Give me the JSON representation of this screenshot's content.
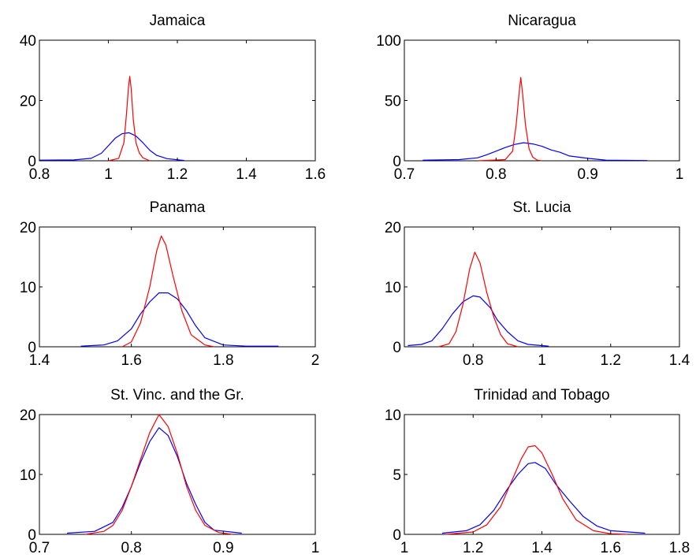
{
  "chart_data": [
    {
      "type": "line",
      "title": "Jamaica",
      "xlim": [
        0.8,
        1.6
      ],
      "ylim": [
        0,
        40
      ],
      "xticks": [
        0.8,
        1,
        1.2,
        1.4,
        1.6
      ],
      "yticks": [
        0,
        20,
        40
      ],
      "xticklabels": [
        "0.8",
        "1",
        "1.2",
        "1.4",
        "1.6"
      ],
      "yticklabels": [
        "0",
        "20",
        "40"
      ],
      "series": [
        {
          "color": "#0000ff",
          "points": [
            [
              0.8,
              0.2
            ],
            [
              0.9,
              0.3
            ],
            [
              0.95,
              0.8
            ],
            [
              0.98,
              2.5
            ],
            [
              1.0,
              5
            ],
            [
              1.02,
              7.5
            ],
            [
              1.04,
              9
            ],
            [
              1.06,
              9.3
            ],
            [
              1.08,
              8.2
            ],
            [
              1.1,
              6
            ],
            [
              1.12,
              3.5
            ],
            [
              1.14,
              1.8
            ],
            [
              1.17,
              0.7
            ],
            [
              1.22,
              0.1
            ]
          ]
        },
        {
          "color": "#ff0000",
          "points": [
            [
              1.0,
              0
            ],
            [
              1.03,
              0.8
            ],
            [
              1.045,
              6
            ],
            [
              1.052,
              15
            ],
            [
              1.058,
              24
            ],
            [
              1.062,
              28
            ],
            [
              1.066,
              24
            ],
            [
              1.072,
              14
            ],
            [
              1.08,
              6
            ],
            [
              1.09,
              2.5
            ],
            [
              1.1,
              1
            ],
            [
              1.12,
              0
            ]
          ]
        }
      ]
    },
    {
      "type": "line",
      "title": "Nicaragua",
      "xlim": [
        0.7,
        1
      ],
      "ylim": [
        0,
        100
      ],
      "xticks": [
        0.7,
        0.8,
        0.9,
        1
      ],
      "yticks": [
        0,
        50,
        100
      ],
      "xticklabels": [
        "0.7",
        "0.8",
        "0.9",
        "1"
      ],
      "yticklabels": [
        "0",
        "50",
        "100"
      ],
      "series": [
        {
          "color": "#0000ff",
          "points": [
            [
              0.72,
              0.5
            ],
            [
              0.76,
              1
            ],
            [
              0.78,
              2.5
            ],
            [
              0.79,
              5
            ],
            [
              0.8,
              8
            ],
            [
              0.81,
              11
            ],
            [
              0.82,
              13.5
            ],
            [
              0.83,
              15
            ],
            [
              0.84,
              14
            ],
            [
              0.85,
              12
            ],
            [
              0.86,
              9
            ],
            [
              0.87,
              7
            ],
            [
              0.88,
              4
            ],
            [
              0.9,
              2
            ],
            [
              0.92,
              0.5
            ],
            [
              0.965,
              0.2
            ]
          ]
        },
        {
          "color": "#ff0000",
          "points": [
            [
              0.78,
              0
            ],
            [
              0.81,
              1
            ],
            [
              0.818,
              8
            ],
            [
              0.822,
              30
            ],
            [
              0.825,
              55
            ],
            [
              0.827,
              69
            ],
            [
              0.829,
              55
            ],
            [
              0.832,
              30
            ],
            [
              0.836,
              10
            ],
            [
              0.84,
              3
            ],
            [
              0.845,
              0.5
            ],
            [
              0.85,
              0
            ]
          ]
        }
      ]
    },
    {
      "type": "line",
      "title": "Panama",
      "xlim": [
        1.4,
        2
      ],
      "ylim": [
        0,
        20
      ],
      "xticks": [
        1.4,
        1.6,
        1.8,
        2
      ],
      "yticks": [
        0,
        10,
        20
      ],
      "xticklabels": [
        "1.4",
        "1.6",
        "1.8",
        "2"
      ],
      "yticklabels": [
        "0",
        "10",
        "20"
      ],
      "series": [
        {
          "color": "#0000ff",
          "points": [
            [
              1.49,
              0.1
            ],
            [
              1.54,
              0.3
            ],
            [
              1.57,
              1
            ],
            [
              1.6,
              3
            ],
            [
              1.62,
              5.5
            ],
            [
              1.64,
              7.5
            ],
            [
              1.66,
              9
            ],
            [
              1.68,
              9
            ],
            [
              1.7,
              8
            ],
            [
              1.72,
              6
            ],
            [
              1.74,
              3.5
            ],
            [
              1.76,
              1.5
            ],
            [
              1.8,
              0.3
            ],
            [
              1.85,
              0.1
            ],
            [
              1.92,
              0.1
            ]
          ]
        },
        {
          "color": "#ff0000",
          "points": [
            [
              1.58,
              0
            ],
            [
              1.6,
              0.8
            ],
            [
              1.62,
              4
            ],
            [
              1.64,
              10
            ],
            [
              1.655,
              16
            ],
            [
              1.665,
              18.5
            ],
            [
              1.675,
              17
            ],
            [
              1.69,
              12
            ],
            [
              1.71,
              6
            ],
            [
              1.73,
              2
            ],
            [
              1.76,
              0.3
            ],
            [
              1.78,
              0
            ]
          ]
        }
      ]
    },
    {
      "type": "line",
      "title": "St. Lucia",
      "xlim": [
        0.6,
        1.4
      ],
      "ylim": [
        0,
        20
      ],
      "xticks": [
        0.8,
        1,
        1.2,
        1.4
      ],
      "yticks": [
        0,
        10,
        20
      ],
      "xticklabels": [
        "0.8",
        "1",
        "1.2",
        "1.4"
      ],
      "yticklabels": [
        "0",
        "10",
        "20"
      ],
      "series": [
        {
          "color": "#0000ff",
          "points": [
            [
              0.61,
              0.2
            ],
            [
              0.65,
              0.4
            ],
            [
              0.68,
              1
            ],
            [
              0.71,
              3
            ],
            [
              0.74,
              5.5
            ],
            [
              0.77,
              7.5
            ],
            [
              0.8,
              8.5
            ],
            [
              0.82,
              8.3
            ],
            [
              0.85,
              6.5
            ],
            [
              0.87,
              4.5
            ],
            [
              0.9,
              2.5
            ],
            [
              0.93,
              1
            ],
            [
              0.96,
              0.4
            ],
            [
              1.0,
              0.2
            ],
            [
              1.02,
              0.1
            ]
          ]
        },
        {
          "color": "#ff0000",
          "points": [
            [
              0.7,
              0
            ],
            [
              0.73,
              0.5
            ],
            [
              0.75,
              2.5
            ],
            [
              0.77,
              7
            ],
            [
              0.79,
              13
            ],
            [
              0.805,
              15.8
            ],
            [
              0.82,
              14
            ],
            [
              0.84,
              9
            ],
            [
              0.86,
              5
            ],
            [
              0.88,
              2
            ],
            [
              0.9,
              0.5
            ],
            [
              0.93,
              0
            ]
          ]
        }
      ]
    },
    {
      "type": "line",
      "title": "St. Vinc. and the Gr.",
      "xlim": [
        0.7,
        1
      ],
      "ylim": [
        0,
        20
      ],
      "xticks": [
        0.7,
        0.8,
        0.9,
        1
      ],
      "yticks": [
        0,
        10,
        20
      ],
      "xticklabels": [
        "0.7",
        "0.8",
        "0.9",
        "1"
      ],
      "yticklabels": [
        "0",
        "10",
        "20"
      ],
      "series": [
        {
          "color": "#0000ff",
          "points": [
            [
              0.73,
              0.2
            ],
            [
              0.76,
              0.5
            ],
            [
              0.78,
              2
            ],
            [
              0.79,
              4.5
            ],
            [
              0.8,
              8
            ],
            [
              0.81,
              12
            ],
            [
              0.82,
              15.5
            ],
            [
              0.83,
              17.8
            ],
            [
              0.84,
              16.5
            ],
            [
              0.85,
              13
            ],
            [
              0.86,
              8.5
            ],
            [
              0.87,
              5
            ],
            [
              0.88,
              2
            ],
            [
              0.89,
              0.7
            ],
            [
              0.92,
              0.2
            ]
          ]
        },
        {
          "color": "#ff0000",
          "points": [
            [
              0.75,
              0
            ],
            [
              0.77,
              0.5
            ],
            [
              0.78,
              1.5
            ],
            [
              0.79,
              4
            ],
            [
              0.8,
              8
            ],
            [
              0.81,
              12.5
            ],
            [
              0.82,
              17
            ],
            [
              0.83,
              20
            ],
            [
              0.84,
              18
            ],
            [
              0.85,
              13.5
            ],
            [
              0.86,
              8
            ],
            [
              0.87,
              4
            ],
            [
              0.88,
              1.5
            ],
            [
              0.895,
              0.3
            ],
            [
              0.91,
              0
            ]
          ]
        }
      ]
    },
    {
      "type": "line",
      "title": "Trinidad and Tobago",
      "xlim": [
        1,
        1.8
      ],
      "ylim": [
        0,
        10
      ],
      "xticks": [
        1,
        1.2,
        1.4,
        1.6,
        1.8
      ],
      "yticks": [
        0,
        5,
        10
      ],
      "xticklabels": [
        "1",
        "1.2",
        "1.4",
        "1.6",
        "1.8"
      ],
      "yticklabels": [
        "0",
        "5",
        "10"
      ],
      "series": [
        {
          "color": "#0000ff",
          "points": [
            [
              1.11,
              0.1
            ],
            [
              1.18,
              0.3
            ],
            [
              1.22,
              0.8
            ],
            [
              1.26,
              2
            ],
            [
              1.3,
              3.8
            ],
            [
              1.33,
              5
            ],
            [
              1.36,
              5.9
            ],
            [
              1.38,
              6
            ],
            [
              1.41,
              5.5
            ],
            [
              1.44,
              4.2
            ],
            [
              1.48,
              2.8
            ],
            [
              1.52,
              1.5
            ],
            [
              1.56,
              0.7
            ],
            [
              1.6,
              0.3
            ],
            [
              1.7,
              0.1
            ]
          ]
        },
        {
          "color": "#ff0000",
          "points": [
            [
              1.12,
              0
            ],
            [
              1.2,
              0.2
            ],
            [
              1.24,
              0.8
            ],
            [
              1.28,
              2.3
            ],
            [
              1.31,
              4.3
            ],
            [
              1.34,
              6.3
            ],
            [
              1.36,
              7.3
            ],
            [
              1.38,
              7.4
            ],
            [
              1.4,
              6.8
            ],
            [
              1.43,
              5
            ],
            [
              1.46,
              3
            ],
            [
              1.5,
              1.2
            ],
            [
              1.55,
              0.3
            ],
            [
              1.6,
              0.05
            ],
            [
              1.65,
              0
            ]
          ]
        }
      ]
    }
  ]
}
